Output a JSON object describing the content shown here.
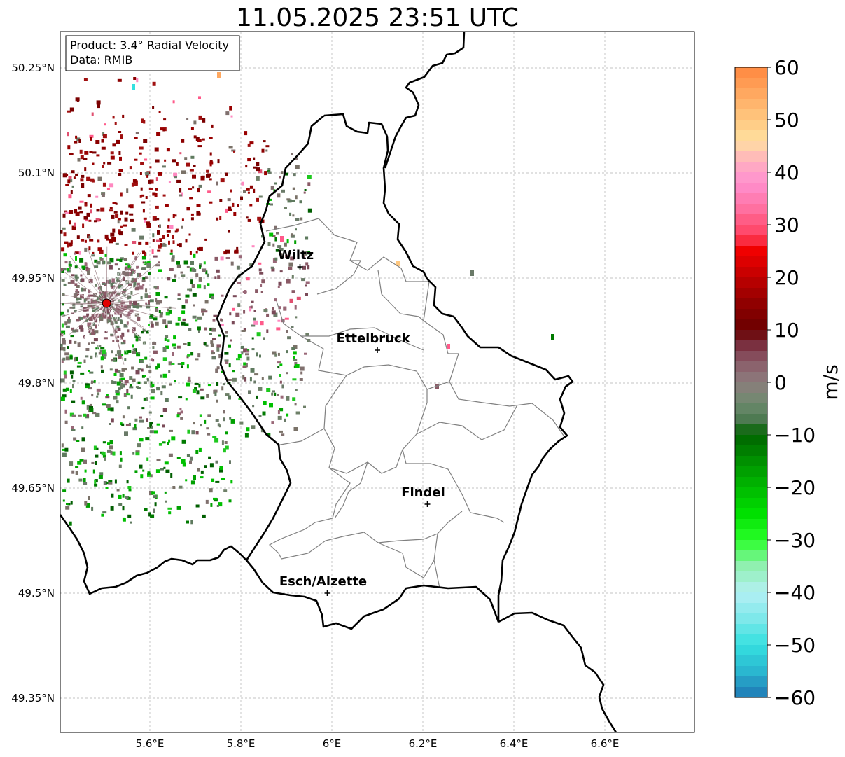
{
  "title": "11.05.2025 23:51 UTC",
  "info": {
    "product_line": "Product: 3.4° Radial Velocity",
    "data_line": "Data: RMIB"
  },
  "axes": {
    "lat_ticks": [
      "50.25°N",
      "50.1°N",
      "49.95°N",
      "49.8°N",
      "49.65°N",
      "49.5°N",
      "49.35°N"
    ],
    "lon_ticks": [
      "5.6°E",
      "5.8°E",
      "6°E",
      "6.2°E",
      "6.4°E",
      "6.6°E"
    ]
  },
  "cities": [
    {
      "name": "Wiltz",
      "lon": 5.93,
      "lat": 49.966
    },
    {
      "name": "Ettelbruck",
      "lon": 6.1,
      "lat": 49.847
    },
    {
      "name": "Findel",
      "lon": 6.21,
      "lat": 49.627
    },
    {
      "name": "Esch/Alzette",
      "lon": 5.99,
      "lat": 49.5
    }
  ],
  "radar": {
    "lon": 5.505,
    "lat": 49.914,
    "color": "#e00000"
  },
  "colorbar": {
    "label": "m/s",
    "min": -60,
    "max": 60,
    "ticks": [
      "60",
      "50",
      "40",
      "30",
      "20",
      "10",
      "0",
      "−10",
      "−20",
      "−30",
      "−40",
      "−50",
      "−60"
    ]
  },
  "colors": {
    "border": "#000000",
    "canton": "#808080",
    "grid": "#b0b0b0"
  }
}
